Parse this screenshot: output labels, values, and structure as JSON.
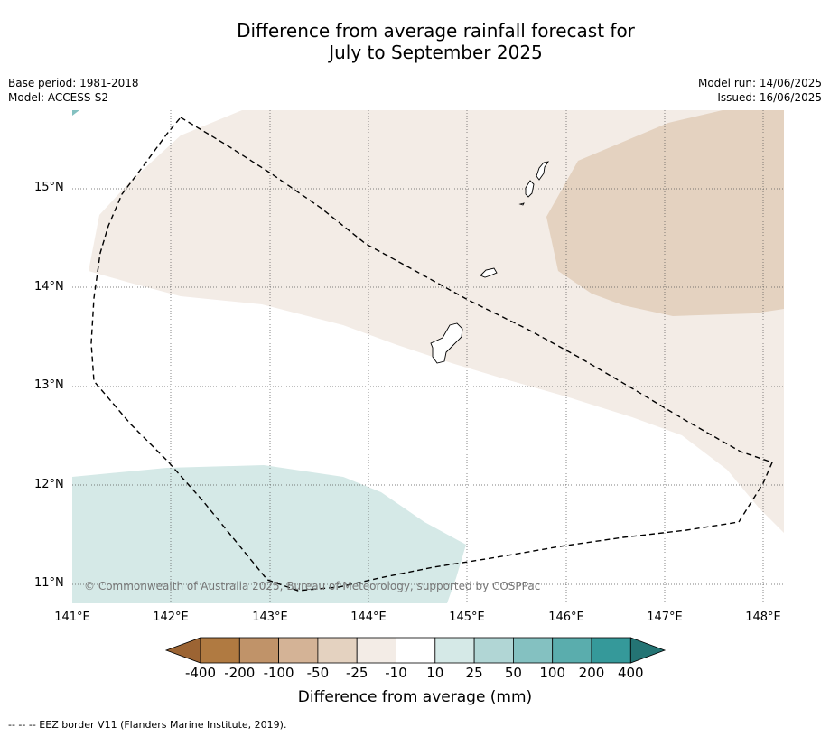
{
  "title_line1": "Difference from average rainfall forecast for",
  "title_line2": "July to September 2025",
  "base_period": "Base period: 1981-2018",
  "model": "Model: ACCESS-S2",
  "model_run": "Model run: 14/06/2025",
  "issued": "Issued: 16/06/2025",
  "lat_labels": [
    "15°N",
    "14°N",
    "13°N",
    "12°N",
    "11°N"
  ],
  "lon_labels": [
    "141°E",
    "142°E",
    "143°E",
    "144°E",
    "145°E",
    "146°E",
    "147°E",
    "148°E"
  ],
  "copyright": "© Commonwealth of Australia 2025, Bureau of Meteorology, supported by COSPPac",
  "colorbar": {
    "labels": [
      "-400",
      "-200",
      "-100",
      "-50",
      "-25",
      "-10",
      "10",
      "25",
      "50",
      "100",
      "200",
      "400"
    ],
    "colors": [
      "#9c6433",
      "#b07a41",
      "#c09369",
      "#d4b396",
      "#e4d2c0",
      "#f3ece6",
      "#ffffff",
      "#d5e9e7",
      "#b1d6d5",
      "#84c1c1",
      "#5aadad",
      "#35999a",
      "#247474"
    ],
    "title": "Difference from average (mm)"
  },
  "colors": {
    "light_brown": "#f3ece6",
    "mid_brown": "#e4d2c0",
    "light_teal": "#d5e9e7"
  },
  "footnote": "--  --  -- EEZ border V11 (Flanders Marine Institute, 2019)."
}
